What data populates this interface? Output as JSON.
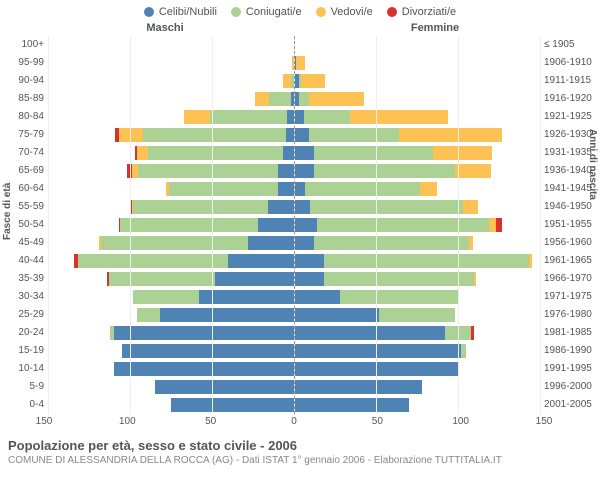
{
  "colors": {
    "celibi": "#4f83b3",
    "coniugati": "#abd194",
    "vedovi": "#fdc154",
    "divorziati": "#d8322b",
    "bg": "#ffffff",
    "grid": "#eeeeee",
    "text": "#555555",
    "subtext": "#888888",
    "centerline": "#999999"
  },
  "legend": [
    {
      "label": "Celibi/Nubili",
      "color_key": "celibi"
    },
    {
      "label": "Coniugati/e",
      "color_key": "coniugati"
    },
    {
      "label": "Vedovi/e",
      "color_key": "vedovi"
    },
    {
      "label": "Divorziati/e",
      "color_key": "divorziati"
    }
  ],
  "gender_labels": {
    "m": "Maschi",
    "f": "Femmine"
  },
  "yaxis_left_title": "Fasce di età",
  "yaxis_right_title": "Anni di nascita",
  "xaxis": {
    "max": 150,
    "ticks": [
      150,
      100,
      50,
      0,
      50,
      100,
      150
    ]
  },
  "title": "Popolazione per età, sesso e stato civile - 2006",
  "subtitle": "COMUNE DI ALESSANDRIA DELLA ROCCA (AG) - Dati ISTAT 1° gennaio 2006 - Elaborazione TUTTITALIA.IT",
  "rows": [
    {
      "age": "100+",
      "birth": "≤ 1905",
      "m": {
        "cel": 0,
        "con": 0,
        "ved": 0,
        "div": 0
      },
      "f": {
        "cel": 0,
        "con": 0,
        "ved": 0,
        "div": 0
      }
    },
    {
      "age": "95-99",
      "birth": "1906-1910",
      "m": {
        "cel": 0,
        "con": 0,
        "ved": 1,
        "div": 0
      },
      "f": {
        "cel": 1,
        "con": 0,
        "ved": 6,
        "div": 0
      }
    },
    {
      "age": "90-94",
      "birth": "1911-1915",
      "m": {
        "cel": 0,
        "con": 2,
        "ved": 5,
        "div": 0
      },
      "f": {
        "cel": 3,
        "con": 1,
        "ved": 15,
        "div": 0
      }
    },
    {
      "age": "85-89",
      "birth": "1916-1920",
      "m": {
        "cel": 2,
        "con": 13,
        "ved": 9,
        "div": 0
      },
      "f": {
        "cel": 3,
        "con": 6,
        "ved": 34,
        "div": 0
      }
    },
    {
      "age": "80-84",
      "birth": "1921-1925",
      "m": {
        "cel": 4,
        "con": 47,
        "ved": 16,
        "div": 0
      },
      "f": {
        "cel": 6,
        "con": 28,
        "ved": 60,
        "div": 0
      }
    },
    {
      "age": "75-79",
      "birth": "1926-1930",
      "m": {
        "cel": 5,
        "con": 87,
        "ved": 15,
        "div": 2
      },
      "f": {
        "cel": 9,
        "con": 55,
        "ved": 63,
        "div": 0
      }
    },
    {
      "age": "70-74",
      "birth": "1931-1935",
      "m": {
        "cel": 7,
        "con": 82,
        "ved": 7,
        "div": 1
      },
      "f": {
        "cel": 12,
        "con": 73,
        "ved": 36,
        "div": 0
      }
    },
    {
      "age": "65-69",
      "birth": "1936-1940",
      "m": {
        "cel": 10,
        "con": 85,
        "ved": 4,
        "div": 3
      },
      "f": {
        "cel": 12,
        "con": 86,
        "ved": 22,
        "div": 0
      }
    },
    {
      "age": "60-64",
      "birth": "1941-1945",
      "m": {
        "cel": 10,
        "con": 66,
        "ved": 2,
        "div": 0
      },
      "f": {
        "cel": 7,
        "con": 70,
        "ved": 10,
        "div": 0
      }
    },
    {
      "age": "55-59",
      "birth": "1946-1950",
      "m": {
        "cel": 16,
        "con": 82,
        "ved": 1,
        "div": 1
      },
      "f": {
        "cel": 10,
        "con": 93,
        "ved": 9,
        "div": 0
      }
    },
    {
      "age": "50-54",
      "birth": "1951-1955",
      "m": {
        "cel": 22,
        "con": 84,
        "ved": 0,
        "div": 1
      },
      "f": {
        "cel": 14,
        "con": 105,
        "ved": 4,
        "div": 4
      }
    },
    {
      "age": "45-49",
      "birth": "1956-1960",
      "m": {
        "cel": 28,
        "con": 90,
        "ved": 1,
        "div": 0
      },
      "f": {
        "cel": 12,
        "con": 95,
        "ved": 2,
        "div": 0
      }
    },
    {
      "age": "40-44",
      "birth": "1961-1965",
      "m": {
        "cel": 40,
        "con": 92,
        "ved": 0,
        "div": 2
      },
      "f": {
        "cel": 18,
        "con": 125,
        "ved": 2,
        "div": 0
      }
    },
    {
      "age": "35-39",
      "birth": "1966-1970",
      "m": {
        "cel": 48,
        "con": 65,
        "ved": 0,
        "div": 1
      },
      "f": {
        "cel": 18,
        "con": 92,
        "ved": 1,
        "div": 0
      }
    },
    {
      "age": "30-34",
      "birth": "1971-1975",
      "m": {
        "cel": 58,
        "con": 40,
        "ved": 0,
        "div": 0
      },
      "f": {
        "cel": 28,
        "con": 72,
        "ved": 0,
        "div": 0
      }
    },
    {
      "age": "25-29",
      "birth": "1976-1980",
      "m": {
        "cel": 82,
        "con": 14,
        "ved": 0,
        "div": 0
      },
      "f": {
        "cel": 52,
        "con": 46,
        "ved": 0,
        "div": 0
      }
    },
    {
      "age": "20-24",
      "birth": "1981-1985",
      "m": {
        "cel": 110,
        "con": 2,
        "ved": 0,
        "div": 0
      },
      "f": {
        "cel": 92,
        "con": 16,
        "ved": 0,
        "div": 2
      }
    },
    {
      "age": "15-19",
      "birth": "1986-1990",
      "m": {
        "cel": 105,
        "con": 0,
        "ved": 0,
        "div": 0
      },
      "f": {
        "cel": 102,
        "con": 3,
        "ved": 0,
        "div": 0
      }
    },
    {
      "age": "10-14",
      "birth": "1991-1995",
      "m": {
        "cel": 110,
        "con": 0,
        "ved": 0,
        "div": 0
      },
      "f": {
        "cel": 100,
        "con": 0,
        "ved": 0,
        "div": 0
      }
    },
    {
      "age": "5-9",
      "birth": "1996-2000",
      "m": {
        "cel": 85,
        "con": 0,
        "ved": 0,
        "div": 0
      },
      "f": {
        "cel": 78,
        "con": 0,
        "ved": 0,
        "div": 0
      }
    },
    {
      "age": "0-4",
      "birth": "2001-2005",
      "m": {
        "cel": 75,
        "con": 0,
        "ved": 0,
        "div": 0
      },
      "f": {
        "cel": 70,
        "con": 0,
        "ved": 0,
        "div": 0
      }
    }
  ]
}
